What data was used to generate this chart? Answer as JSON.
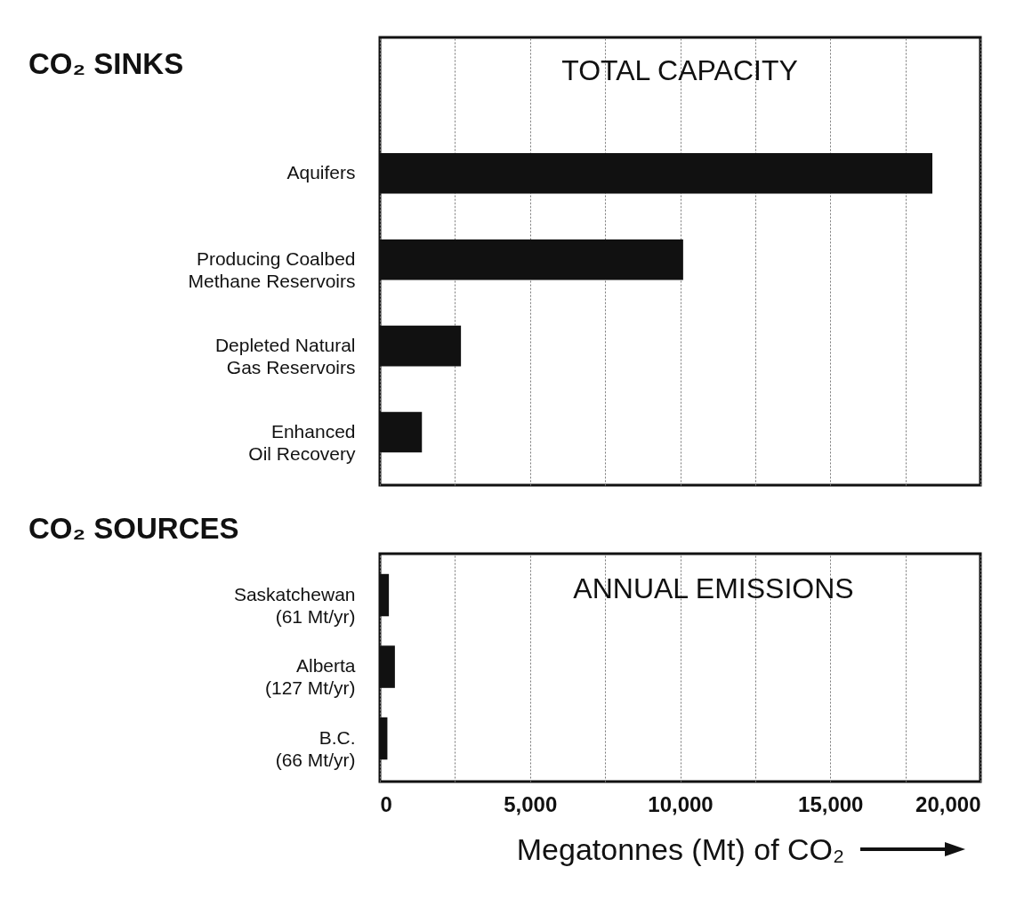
{
  "chart_data": [
    {
      "type": "bar",
      "orientation": "horizontal",
      "title": "CO₂ SINKS",
      "categories": [
        "Aquifers",
        "Producing Coalbed\nMethane Reservoirs",
        "Depleted Natural\nGas Reservoirs",
        "Enhanced\nOil Recovery"
      ],
      "values": [
        18400,
        10100,
        2700,
        1400
      ],
      "color": "#111111",
      "xlim": [
        0,
        20000
      ],
      "xticks": [
        {
          "value": 0,
          "label": null
        },
        {
          "value": 2500,
          "label": null
        },
        {
          "value": 5000,
          "label": null
        },
        {
          "value": 7500,
          "label": null
        },
        {
          "value": 10000,
          "label": null
        },
        {
          "value": 12500,
          "label": null
        },
        {
          "value": 15000,
          "label": null
        },
        {
          "value": 17500,
          "label": null
        },
        {
          "value": 20000,
          "label": null
        }
      ],
      "grid": "x",
      "tick_labels": "y",
      "annotations": [
        "TOTAL CAPACITY"
      ]
    },
    {
      "type": "bar",
      "orientation": "horizontal",
      "title": "CO₂ SOURCES",
      "categories": [
        "Saskatchewan\n(61 Mt/yr)",
        "Alberta\n(127 Mt/yr)",
        "B.C.\n(66 Mt/yr)"
      ],
      "values": [
        300,
        500,
        250
      ],
      "color": "#111111",
      "xlim": [
        0,
        20000
      ],
      "xticks": [
        {
          "value": 0,
          "label": "0"
        },
        {
          "value": 2500,
          "label": null
        },
        {
          "value": 5000,
          "label": "5,000"
        },
        {
          "value": 7500,
          "label": null
        },
        {
          "value": 10000,
          "label": "10,000"
        },
        {
          "value": 12500,
          "label": null
        },
        {
          "value": 15000,
          "label": "15,000"
        },
        {
          "value": 17500,
          "label": null
        },
        {
          "value": 20000,
          "label": "20,000"
        }
      ],
      "grid": "x",
      "xlabel": "Megatonnes (Mt) of CO₂",
      "annotations": [
        "ANNUAL EMISSIONS"
      ]
    }
  ]
}
